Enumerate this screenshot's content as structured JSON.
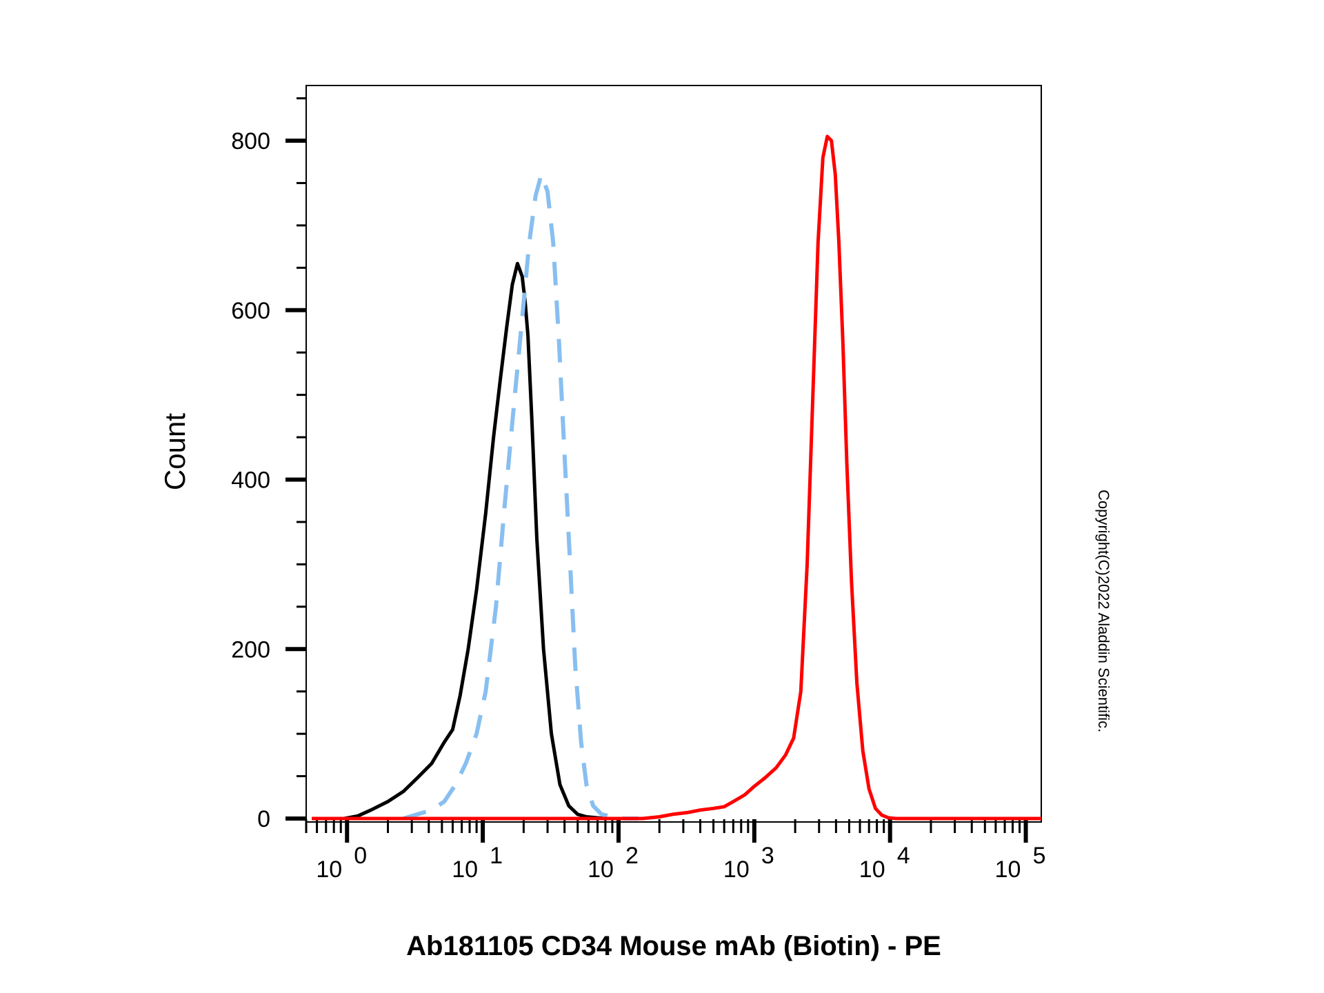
{
  "chart_data": {
    "type": "line",
    "title": "",
    "xlabel": "Ab181105 CD34 Mouse mAb (Biotin) - PE",
    "ylabel": "Count",
    "x_scale": "log",
    "xlim": [
      0.5,
      130000
    ],
    "ylim": [
      0,
      860
    ],
    "x_ticks": [
      {
        "base": "10",
        "exp": "0",
        "value": 1
      },
      {
        "base": "10",
        "exp": "1",
        "value": 10
      },
      {
        "base": "10",
        "exp": "2",
        "value": 100
      },
      {
        "base": "10",
        "exp": "3",
        "value": 1000
      },
      {
        "base": "10",
        "exp": "4",
        "value": 10000
      },
      {
        "base": "10",
        "exp": "5",
        "value": 100000
      }
    ],
    "y_ticks": [
      0,
      200,
      400,
      600,
      800
    ],
    "y_tick_labels": [
      "0",
      "200",
      "400",
      "600",
      "800"
    ],
    "grid": false,
    "series": [
      {
        "color": "#000000",
        "style": "solid",
        "x": [
          0.95,
          1.2,
          1.5,
          2.0,
          2.6,
          3.3,
          4.2,
          5.2,
          6.0,
          6.8,
          7.8,
          9.0,
          10.5,
          12.0,
          13.5,
          15.0,
          16.5,
          18.0,
          19.5,
          20.5,
          21.5,
          23.0,
          25.0,
          28.0,
          32.0,
          37.0,
          43.0,
          50.0,
          58.0,
          68.0,
          80.0,
          95.0
        ],
        "y": [
          0,
          3,
          10,
          20,
          32,
          48,
          65,
          90,
          105,
          145,
          200,
          270,
          360,
          450,
          520,
          580,
          630,
          655,
          640,
          610,
          570,
          470,
          330,
          200,
          100,
          40,
          15,
          5,
          2,
          1,
          0,
          0
        ]
      },
      {
        "color": "#88bff0",
        "style": "dashed",
        "x": [
          2.6,
          3.3,
          4.2,
          5.2,
          6.3,
          7.5,
          9.0,
          10.5,
          12.5,
          14.5,
          17.0,
          19.5,
          22.0,
          24.5,
          27.0,
          30.0,
          33.0,
          36.5,
          40.0,
          44.0,
          48.0,
          53.0,
          58.0,
          65.0,
          75.0,
          90.0,
          110.0,
          140.0
        ],
        "y": [
          0,
          5,
          10,
          20,
          40,
          65,
          100,
          150,
          250,
          370,
          490,
          590,
          680,
          735,
          760,
          740,
          680,
          560,
          430,
          300,
          180,
          90,
          40,
          15,
          5,
          2,
          0,
          0
        ]
      },
      {
        "color": "#ff0000",
        "style": "solid",
        "x": [
          0.55,
          150,
          200,
          250,
          320,
          400,
          500,
          600,
          700,
          850,
          1000,
          1200,
          1450,
          1700,
          1950,
          2200,
          2450,
          2700,
          2950,
          3200,
          3450,
          3700,
          3950,
          4200,
          4500,
          4800,
          5200,
          5700,
          6300,
          7000,
          7800,
          8700,
          9700,
          11000,
          12500,
          14000,
          130000
        ],
        "y": [
          0,
          0,
          2,
          5,
          7,
          10,
          12,
          14,
          20,
          28,
          38,
          48,
          60,
          75,
          95,
          150,
          300,
          500,
          680,
          780,
          805,
          800,
          760,
          680,
          560,
          420,
          280,
          160,
          80,
          35,
          12,
          4,
          1,
          0,
          0,
          0,
          0
        ]
      }
    ]
  },
  "copyright": "Copyright(C)2022 Aladdin Scientific."
}
